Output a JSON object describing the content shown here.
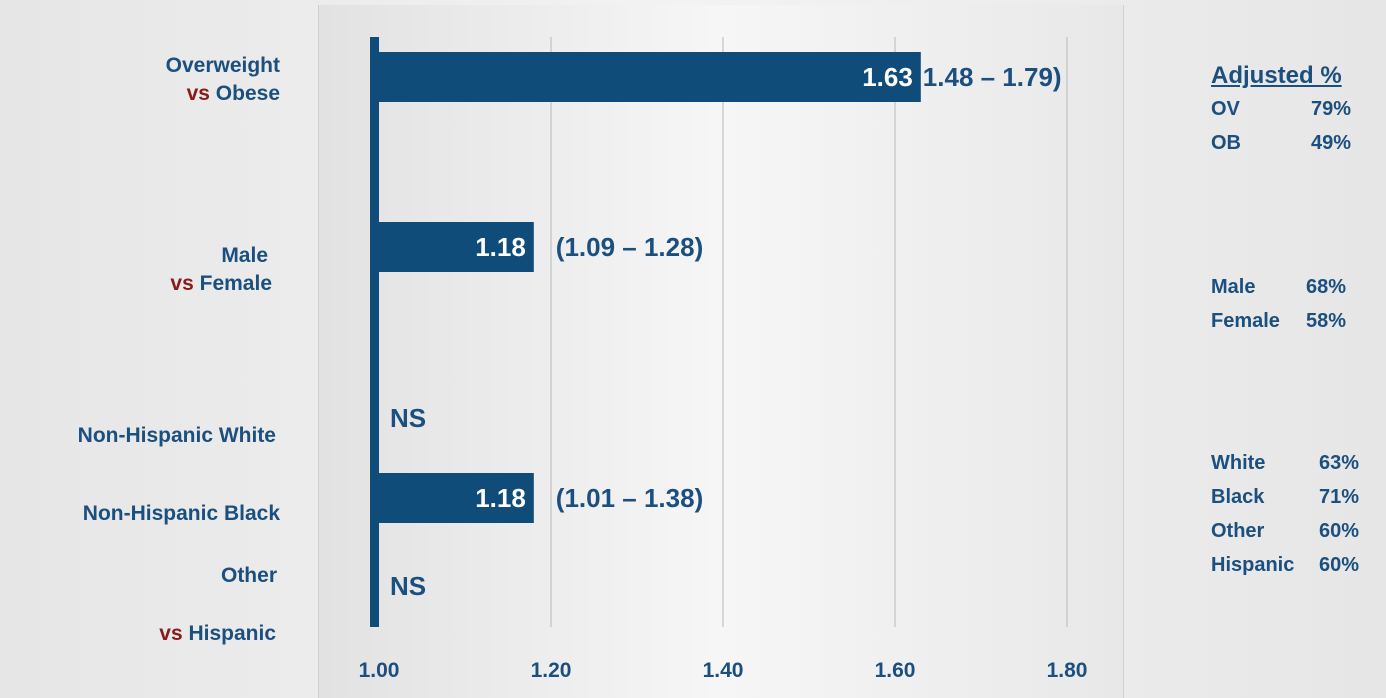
{
  "chart_data": {
    "type": "bar",
    "orientation": "horizontal",
    "baseline": 1.0,
    "xlim": [
      1.0,
      1.84
    ],
    "x_ticks": [
      "1.00",
      "1.20",
      "1.40",
      "1.60",
      "1.80"
    ],
    "grid": true,
    "bars": [
      {
        "value": 1.63,
        "label": "1.63",
        "ci": "1.48 – 1.79)"
      },
      {
        "value": 1.18,
        "label": "1.18",
        "ci": "(1.09 – 1.28)"
      },
      {
        "value": 1.18,
        "label": "1.18",
        "ci": "(1.01 – 1.38)"
      }
    ],
    "ns_labels": [
      "NS",
      "NS"
    ]
  },
  "row_labels": {
    "overweight": "Overweight",
    "vs1": "vs",
    "obese": "Obese",
    "male": "Male",
    "vs2": "vs",
    "female": "Female",
    "nh_white": "Non-Hispanic White",
    "nh_black": "Non-Hispanic Black",
    "other": "Other",
    "vs3": "vs",
    "hispanic": "Hispanic"
  },
  "adjusted": {
    "title": "Adjusted %",
    "groups": [
      [
        [
          "OV",
          "79%"
        ],
        [
          "OB",
          "49%"
        ]
      ],
      [
        [
          "Male",
          "68%"
        ],
        [
          "Female",
          "58%"
        ]
      ],
      [
        [
          "White",
          "63%"
        ],
        [
          "Black",
          "71%"
        ],
        [
          "Other",
          "60%"
        ],
        [
          "Hispanic",
          "60%"
        ]
      ]
    ]
  },
  "colors": {
    "bar": "#0f4c7a",
    "text": "#1b4f7f",
    "vs": "#8b1a1a",
    "grid": "#b8b8b8"
  }
}
